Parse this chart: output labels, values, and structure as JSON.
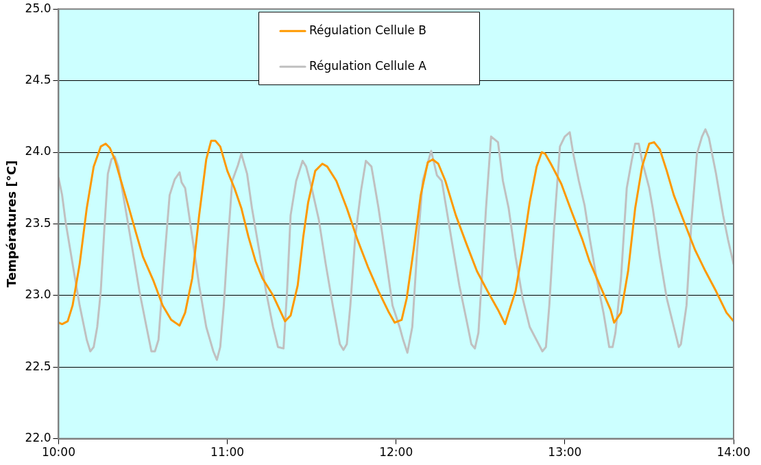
{
  "chart_data": {
    "type": "line",
    "ylabel": "Températures [°C]",
    "xlim": [
      10,
      14
    ],
    "xticks": [
      {
        "value": 10,
        "label": "10:00"
      },
      {
        "value": 11,
        "label": "11:00"
      },
      {
        "value": 12,
        "label": "12:00"
      },
      {
        "value": 13,
        "label": "13:00"
      },
      {
        "value": 14,
        "label": "14:00"
      }
    ],
    "ylim": [
      22,
      25
    ],
    "yticks": [
      {
        "value": 22,
        "label": "22.0"
      },
      {
        "value": 22.5,
        "label": "22.5"
      },
      {
        "value": 23,
        "label": "23.0"
      },
      {
        "value": 23.5,
        "label": "23.5"
      },
      {
        "value": 24,
        "label": "24.0"
      },
      {
        "value": 24.5,
        "label": "24.5"
      },
      {
        "value": 25,
        "label": "25.0"
      }
    ],
    "grid": "y",
    "legend": "top",
    "marker": "none",
    "line_style": "solid",
    "series": [
      {
        "name": "Régulation Cellule B",
        "color": "#ff9900",
        "x": [
          10,
          10.021,
          10.054,
          10.083,
          10.125,
          10.167,
          10.208,
          10.25,
          10.279,
          10.304,
          10.333,
          10.375,
          10.417,
          10.458,
          10.5,
          10.563,
          10.617,
          10.667,
          10.717,
          10.75,
          10.792,
          10.833,
          10.875,
          10.904,
          10.929,
          10.958,
          11,
          11.042,
          11.083,
          11.125,
          11.167,
          11.208,
          11.271,
          11.342,
          11.375,
          11.417,
          11.45,
          11.479,
          11.521,
          11.563,
          11.592,
          11.646,
          11.708,
          11.771,
          11.833,
          11.896,
          11.958,
          11.992,
          12.033,
          12.063,
          12.104,
          12.146,
          12.188,
          12.217,
          12.25,
          12.292,
          12.354,
          12.417,
          12.479,
          12.542,
          12.604,
          12.646,
          12.667,
          12.708,
          12.75,
          12.792,
          12.833,
          12.863,
          12.883,
          12.917,
          12.979,
          13.042,
          13.104,
          13.146,
          13.208,
          13.271,
          13.292,
          13.333,
          13.375,
          13.417,
          13.458,
          13.5,
          13.529,
          13.563,
          13.604,
          13.646,
          13.708,
          13.771,
          13.833,
          13.896,
          13.958,
          14
        ],
        "values": [
          22.81,
          22.8,
          22.82,
          22.93,
          23.22,
          23.61,
          23.9,
          24.04,
          24.06,
          24.03,
          23.95,
          23.78,
          23.61,
          23.44,
          23.27,
          23.1,
          22.93,
          22.83,
          22.79,
          22.88,
          23.12,
          23.56,
          23.95,
          24.08,
          24.08,
          24.04,
          23.87,
          23.75,
          23.61,
          23.41,
          23.24,
          23.12,
          23,
          22.82,
          22.86,
          23.07,
          23.41,
          23.65,
          23.87,
          23.92,
          23.9,
          23.8,
          23.61,
          23.39,
          23.2,
          23.03,
          22.88,
          22.81,
          22.83,
          22.98,
          23.32,
          23.7,
          23.93,
          23.95,
          23.92,
          23.8,
          23.56,
          23.36,
          23.17,
          23.03,
          22.9,
          22.8,
          22.88,
          23.03,
          23.32,
          23.65,
          23.9,
          24,
          23.99,
          23.92,
          23.78,
          23.58,
          23.39,
          23.24,
          23.07,
          22.9,
          22.81,
          22.88,
          23.17,
          23.61,
          23.9,
          24.06,
          24.07,
          24.02,
          23.87,
          23.7,
          23.51,
          23.32,
          23.17,
          23.03,
          22.88,
          22.82
        ]
      },
      {
        "name": "Régulation Cellule A",
        "color": "#c0c0c0",
        "x": [
          10,
          10.021,
          10.042,
          10.083,
          10.125,
          10.167,
          10.188,
          10.208,
          10.229,
          10.25,
          10.271,
          10.292,
          10.313,
          10.333,
          10.354,
          10.396,
          10.438,
          10.479,
          10.521,
          10.55,
          10.571,
          10.592,
          10.625,
          10.658,
          10.688,
          10.717,
          10.729,
          10.75,
          10.792,
          10.833,
          10.875,
          10.917,
          10.938,
          10.958,
          10.979,
          11,
          11.029,
          11.063,
          11.083,
          11.117,
          11.146,
          11.188,
          11.229,
          11.271,
          11.3,
          11.333,
          11.354,
          11.375,
          11.408,
          11.446,
          11.467,
          11.5,
          11.542,
          11.583,
          11.625,
          11.667,
          11.688,
          11.708,
          11.729,
          11.758,
          11.792,
          11.821,
          11.854,
          11.896,
          11.938,
          11.979,
          12.021,
          12.042,
          12.067,
          12.096,
          12.125,
          12.158,
          12.208,
          12.242,
          12.271,
          12.292,
          12.333,
          12.375,
          12.417,
          12.446,
          12.467,
          12.488,
          12.508,
          12.533,
          12.563,
          12.604,
          12.633,
          12.667,
          12.708,
          12.75,
          12.792,
          12.867,
          12.888,
          12.908,
          12.938,
          12.971,
          13,
          13.029,
          13.05,
          13.083,
          13.117,
          13.146,
          13.188,
          13.229,
          13.263,
          13.283,
          13.3,
          13.333,
          13.367,
          13.396,
          13.417,
          13.438,
          13.458,
          13.5,
          13.521,
          13.563,
          13.604,
          13.646,
          13.675,
          13.688,
          13.721,
          13.75,
          13.783,
          13.813,
          13.833,
          13.854,
          13.896,
          13.938,
          13.967,
          14
        ],
        "values": [
          23.82,
          23.7,
          23.51,
          23.22,
          22.93,
          22.69,
          22.61,
          22.64,
          22.78,
          23.03,
          23.46,
          23.85,
          23.95,
          23.97,
          23.9,
          23.61,
          23.32,
          23.03,
          22.78,
          22.61,
          22.61,
          22.69,
          23.22,
          23.7,
          23.81,
          23.86,
          23.79,
          23.75,
          23.41,
          23.07,
          22.78,
          22.61,
          22.55,
          22.64,
          22.93,
          23.32,
          23.8,
          23.91,
          23.99,
          23.85,
          23.61,
          23.32,
          23.03,
          22.78,
          22.64,
          22.63,
          23.03,
          23.56,
          23.8,
          23.94,
          23.9,
          23.75,
          23.53,
          23.22,
          22.93,
          22.66,
          22.62,
          22.66,
          22.93,
          23.41,
          23.73,
          23.94,
          23.9,
          23.61,
          23.27,
          22.93,
          22.78,
          22.69,
          22.6,
          22.78,
          23.32,
          23.8,
          24.01,
          23.84,
          23.8,
          23.65,
          23.36,
          23.07,
          22.83,
          22.66,
          22.63,
          22.74,
          23.12,
          23.61,
          24.11,
          24.07,
          23.8,
          23.61,
          23.27,
          22.98,
          22.78,
          22.61,
          22.64,
          22.93,
          23.51,
          24.04,
          24.11,
          24.14,
          23.99,
          23.8,
          23.63,
          23.41,
          23.12,
          22.88,
          22.64,
          22.64,
          22.74,
          23.12,
          23.75,
          23.94,
          24.06,
          24.06,
          23.94,
          23.75,
          23.61,
          23.27,
          22.98,
          22.78,
          22.64,
          22.66,
          22.93,
          23.51,
          23.99,
          24.11,
          24.16,
          24.1,
          23.85,
          23.56,
          23.39,
          23.22
        ]
      }
    ]
  }
}
